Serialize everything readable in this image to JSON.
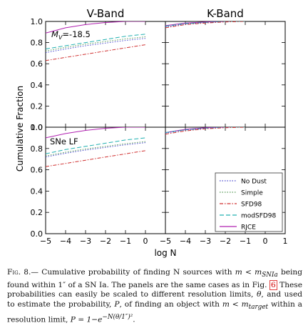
{
  "panel_titles": {
    "left": "V-Band",
    "right": "K-Band"
  },
  "annotations": {
    "top": "M_V=-18.5",
    "bottom": "SNe LF"
  },
  "y_axis_label": "Cumulative Fraction",
  "x_axis_label": "log N",
  "y_ticks": [
    "0.0",
    "0.2",
    "0.4",
    "0.6",
    "0.8",
    "1.0"
  ],
  "x_ticks": [
    "−5",
    "−4",
    "−3",
    "−2",
    "−1",
    "0"
  ],
  "x_ticks_right": [
    "−5",
    "−4",
    "−3",
    "−2",
    "−1",
    "0",
    "1"
  ],
  "legend": [
    {
      "label": "No Dust",
      "color": "#4a4ad0",
      "dash": "1.5,2"
    },
    {
      "label": "Simple",
      "color": "#5a9a5a",
      "dash": "1.5,2"
    },
    {
      "label": "SFD98",
      "color": "#d03030",
      "dash": "5,2,1.5,2"
    },
    {
      "label": "modSFD98",
      "color": "#20b0b0",
      "dash": "6,3"
    },
    {
      "label": "RJCE",
      "color": "#b020b0",
      "dash": ""
    }
  ],
  "caption": {
    "fig_label": "Fig. 8.—",
    "part1": " Cumulative probability of finding N sources with ",
    "math1": "m < m",
    "sub1": "SNIa",
    "part2": " being found within 1″ of a SN Ia. The panels are the same cases as in Fig. ",
    "ref": "6",
    "part3": " These probabilities can easily be scaled to different resolution limits, ",
    "theta": "θ",
    "part4": ", and used to estimate the probability, ",
    "P": "P",
    "part5": ", of finding an object with ",
    "math2": "m < m",
    "sub2": "target",
    "part6": " within a resolution limit, ",
    "formula": "P = 1−e",
    "formula_sup": "−N(θ/1″)²",
    "end": "."
  },
  "chart_data": [
    {
      "type": "line",
      "panel": "top-left",
      "title": "V-Band",
      "annotation": "M_V=-18.5",
      "xlabel": "",
      "ylabel": "Cumulative Fraction",
      "xlim": [
        -5,
        1
      ],
      "ylim": [
        0,
        1
      ],
      "x": [
        -5,
        -4,
        -3,
        -2,
        -1,
        0
      ],
      "series": [
        {
          "name": "RJCE",
          "values": [
            0.89,
            0.94,
            0.97,
            0.99,
            1.0,
            1.0
          ]
        },
        {
          "name": "modSFD98",
          "values": [
            0.74,
            0.77,
            0.8,
            0.83,
            0.86,
            0.88
          ]
        },
        {
          "name": "Simple",
          "values": [
            0.72,
            0.755,
            0.785,
            0.81,
            0.835,
            0.855
          ]
        },
        {
          "name": "No Dust",
          "values": [
            0.705,
            0.74,
            0.77,
            0.795,
            0.82,
            0.84
          ]
        },
        {
          "name": "SFD98",
          "values": [
            0.63,
            0.66,
            0.69,
            0.72,
            0.75,
            0.78
          ]
        }
      ]
    },
    {
      "type": "line",
      "panel": "top-right",
      "title": "K-Band",
      "xlim": [
        -5,
        1
      ],
      "ylim": [
        0,
        1
      ],
      "x": [
        -5,
        -4,
        -3,
        -2,
        -1
      ],
      "series": [
        {
          "name": "RJCE",
          "values": [
            0.96,
            0.985,
            0.995,
            1.0,
            1.0
          ]
        },
        {
          "name": "modSFD98",
          "values": [
            0.955,
            0.98,
            0.99,
            1.0,
            1.0
          ]
        },
        {
          "name": "Simple",
          "values": [
            0.95,
            0.975,
            0.99,
            1.0,
            1.0
          ]
        },
        {
          "name": "No Dust",
          "values": [
            0.95,
            0.975,
            0.99,
            1.0,
            1.0
          ]
        },
        {
          "name": "SFD98",
          "values": [
            0.94,
            0.97,
            0.985,
            0.995,
            1.0
          ]
        }
      ]
    },
    {
      "type": "line",
      "panel": "bottom-left",
      "annotation": "SNe LF",
      "xlabel": "log N",
      "xlim": [
        -5,
        1
      ],
      "ylim": [
        0,
        1
      ],
      "x": [
        -5,
        -4,
        -3,
        -2,
        -1,
        0
      ],
      "series": [
        {
          "name": "RJCE",
          "values": [
            0.9,
            0.94,
            0.97,
            0.99,
            1.0,
            1.0
          ]
        },
        {
          "name": "modSFD98",
          "values": [
            0.75,
            0.79,
            0.82,
            0.85,
            0.88,
            0.9
          ]
        },
        {
          "name": "Simple",
          "values": [
            0.73,
            0.765,
            0.795,
            0.82,
            0.845,
            0.865
          ]
        },
        {
          "name": "No Dust",
          "values": [
            0.72,
            0.755,
            0.785,
            0.81,
            0.835,
            0.855
          ]
        },
        {
          "name": "SFD98",
          "values": [
            0.63,
            0.66,
            0.69,
            0.72,
            0.75,
            0.78
          ]
        }
      ]
    },
    {
      "type": "line",
      "panel": "bottom-right",
      "xlabel": "log N",
      "xlim": [
        -5,
        1
      ],
      "ylim": [
        0,
        1
      ],
      "x": [
        -5,
        -4,
        -3,
        -2,
        -1
      ],
      "series": [
        {
          "name": "RJCE",
          "values": [
            0.95,
            0.98,
            0.995,
            1.0,
            1.0
          ]
        },
        {
          "name": "modSFD98",
          "values": [
            0.95,
            0.975,
            0.99,
            1.0,
            1.0
          ]
        },
        {
          "name": "Simple",
          "values": [
            0.945,
            0.975,
            0.99,
            1.0,
            1.0
          ]
        },
        {
          "name": "No Dust",
          "values": [
            0.945,
            0.975,
            0.99,
            1.0,
            1.0
          ]
        },
        {
          "name": "SFD98",
          "values": [
            0.935,
            0.965,
            0.985,
            0.995,
            1.0
          ]
        }
      ]
    }
  ]
}
